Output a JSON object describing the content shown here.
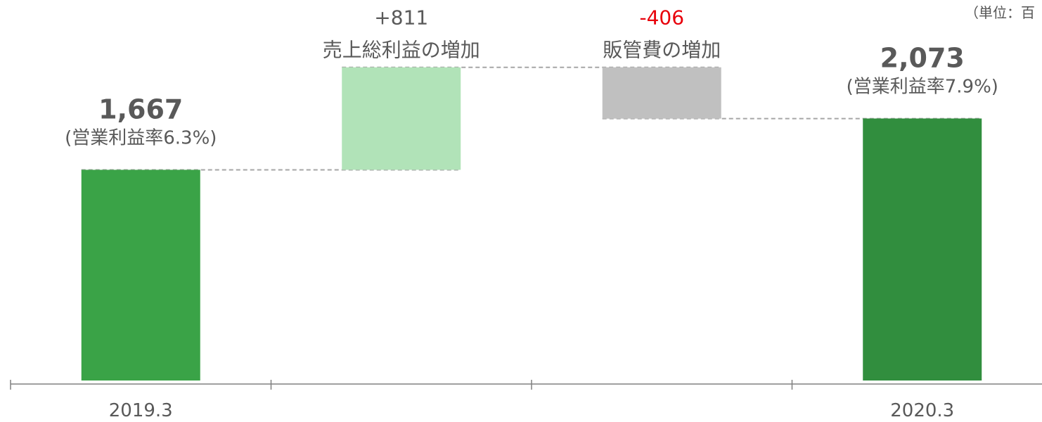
{
  "chart_data": {
    "type": "waterfall",
    "unit_note": "（単位：百",
    "categories": [
      "2019.3",
      "",
      "",
      "2020.3"
    ],
    "steps": [
      {
        "kind": "total",
        "value": 1667,
        "value_label": "1,667",
        "sub_label": "(営業利益率6.3%)",
        "color": "#3aa347"
      },
      {
        "kind": "increase",
        "value": 811,
        "value_label": "+811",
        "sub_label": "売上総利益の増加",
        "color": "#b1e3b8"
      },
      {
        "kind": "decrease",
        "value": -406,
        "value_label": "-406",
        "sub_label": "販管費の増加",
        "color": "#c0c0c0",
        "label_color": "#e8000b"
      },
      {
        "kind": "total",
        "value": 2073,
        "value_label": "2,073",
        "sub_label": "(営業利益率7.9%)",
        "color": "#318e3e"
      }
    ],
    "ylim": [
      0,
      2500
    ],
    "grid": false,
    "legend": "none"
  }
}
